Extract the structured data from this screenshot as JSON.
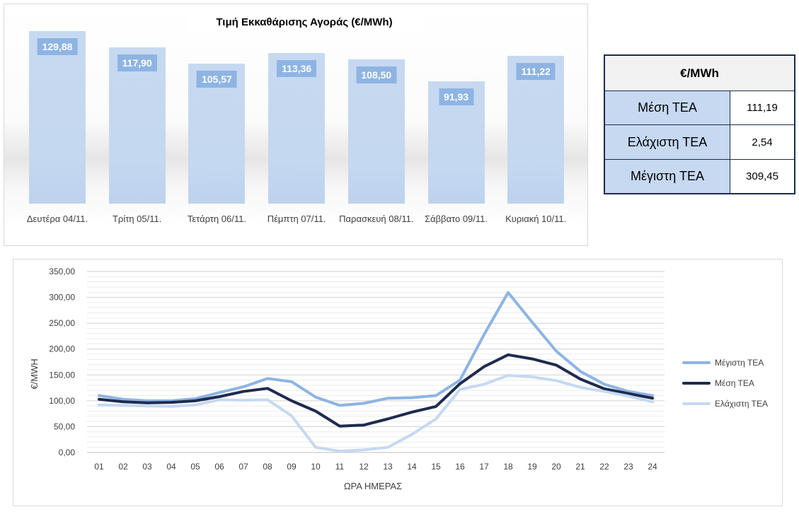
{
  "chart_data": [
    {
      "type": "bar",
      "title": "Τιμή Εκκαθάρισης Αγοράς (€/MWh)",
      "categories": [
        "Δευτέρα 04/11.",
        "Τρίτη 05/11.",
        "Τετάρτη 06/11.",
        "Πέμπτη 07/11.",
        "Παρασκευή 08/11.",
        "Σάββατο 09/11.",
        "Κυριακή 10/11."
      ],
      "values": [
        129.88,
        117.9,
        105.57,
        113.36,
        108.5,
        91.93,
        111.22
      ],
      "value_labels": [
        "129,88",
        "117,90",
        "105,57",
        "113,36",
        "108,50",
        "91,93",
        "111,22"
      ],
      "colors": {
        "bar": "#c6d9f1",
        "label_bg": "#8eb4e3"
      }
    },
    {
      "type": "line",
      "title": "",
      "xlabel": "ΩΡΑ ΗΜΕΡΑΣ",
      "ylabel": "€/MWH",
      "x": [
        "01",
        "02",
        "03",
        "04",
        "05",
        "06",
        "07",
        "08",
        "09",
        "10",
        "11",
        "12",
        "13",
        "14",
        "15",
        "16",
        "17",
        "18",
        "19",
        "20",
        "21",
        "22",
        "23",
        "24"
      ],
      "ylim": [
        0,
        350
      ],
      "yticks": [
        "0,00",
        "50,00",
        "100,00",
        "150,00",
        "200,00",
        "250,00",
        "300,00",
        "350,00"
      ],
      "legend_position": "right",
      "grid": true,
      "series": [
        {
          "name": "Μέγιστη ΤΕΑ",
          "color": "#8eb4e3",
          "values": [
            110,
            103,
            100,
            100,
            104,
            116,
            127,
            143,
            137,
            107,
            91,
            95,
            105,
            106,
            110,
            140,
            228,
            309.45,
            252,
            196,
            157,
            132,
            118,
            110
          ]
        },
        {
          "name": "Μέση ΤΕΑ",
          "color": "#1f2b4d",
          "values": [
            103,
            98,
            96,
            97,
            100,
            108,
            118,
            124,
            100,
            80,
            51,
            53,
            65,
            78,
            89,
            133,
            166,
            189,
            181,
            169,
            142,
            123,
            114,
            105
          ]
        },
        {
          "name": "Ελάχιστη ΤΕΑ",
          "color": "#c6d9f1",
          "values": [
            92,
            91,
            90,
            89,
            92,
            102,
            101,
            102,
            71,
            10,
            2.54,
            5,
            10,
            35,
            65,
            122,
            132,
            149,
            146,
            139,
            126,
            118,
            109,
            98
          ]
        }
      ]
    }
  ],
  "stats_table": {
    "header": "€/MWh",
    "rows": [
      {
        "label": "Μέση ΤΕΑ",
        "value": "111,19"
      },
      {
        "label": "Ελάχιστη ΤΕΑ",
        "value": "2,54"
      },
      {
        "label": "Μέγιστη ΤΕΑ",
        "value": "309,45"
      }
    ]
  }
}
